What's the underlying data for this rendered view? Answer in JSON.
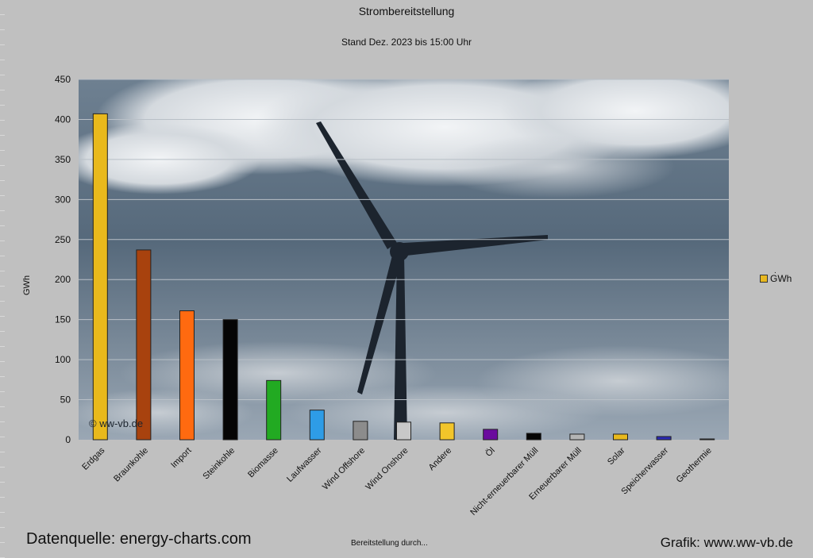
{
  "header": {
    "title": "Strombereitstellung",
    "subtitle": "Stand Dez. 2023 bis 15:00 Uhr"
  },
  "legend": {
    "label": "GWh",
    "dot": "."
  },
  "watermark": "© ww-vb.de",
  "footer": {
    "source": "Datenquelle: energy-charts.com",
    "center": "Bereitstellung durch...",
    "credit": "Grafik: www.ww-vb.de"
  },
  "chart_data": {
    "type": "bar",
    "title": "Strombereitstellung",
    "subtitle": "Stand Dez. 2023 bis 15:00 Uhr",
    "xlabel": "Bereitstellung durch...",
    "ylabel": "GWh",
    "ylim": [
      0,
      450
    ],
    "yticks": [
      0,
      50,
      100,
      150,
      200,
      250,
      300,
      350,
      400,
      450
    ],
    "grid": true,
    "legend_position": "right",
    "categories": [
      "Erdgas",
      "Braunkohle",
      "Import",
      "Steinkohle",
      "Biomasse",
      "Laufwasser",
      "Wind Offshore",
      "Wind Onshore",
      "Andere",
      "Öl",
      "Nicht-erneuerbarer Müll",
      "Erneuerbarer Müll",
      "Solar",
      "Speicherwasser",
      "Geothermie"
    ],
    "series": [
      {
        "name": "GWh",
        "values": [
          407,
          237,
          161,
          150,
          74,
          37,
          23,
          22,
          21,
          13,
          8,
          7,
          7,
          4,
          1
        ]
      }
    ],
    "colors": [
      "#e9b91c",
      "#a8420e",
      "#ff6a10",
      "#050505",
      "#22aa22",
      "#2e9ce6",
      "#8c8c8c",
      "#c8c8c8",
      "#f2c52a",
      "#6a0a9e",
      "#050505",
      "#b4b4b4",
      "#e9b91c",
      "#2a2ab4",
      "#505050"
    ]
  }
}
